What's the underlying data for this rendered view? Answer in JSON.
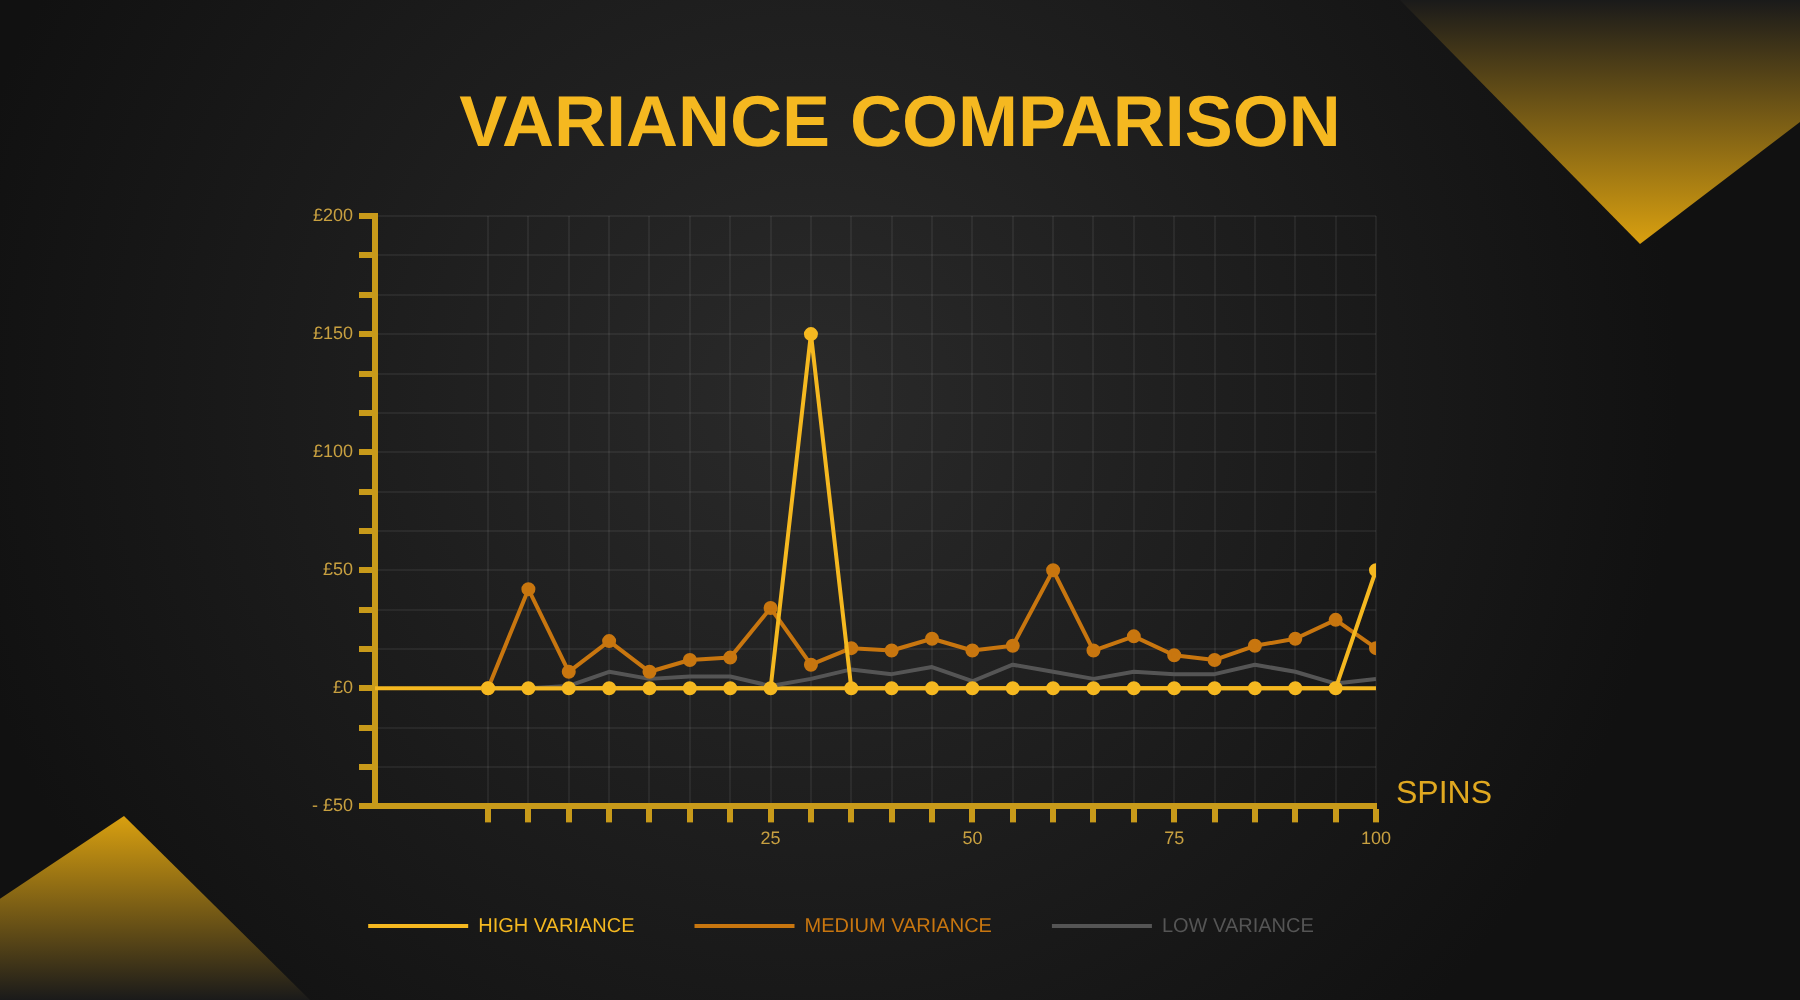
{
  "chart_data": {
    "type": "line",
    "title": "VARIANCE COMPARISON",
    "xlabel": "SPINS",
    "x": [
      -10,
      -5,
      0,
      5,
      10,
      15,
      20,
      25,
      30,
      35,
      40,
      45,
      50,
      55,
      60,
      65,
      70,
      75,
      80,
      85,
      90,
      95,
      100
    ],
    "series": [
      {
        "name": "HIGH VARIANCE",
        "color": "#f5b820",
        "marker": "circle",
        "values": [
          0,
          0,
          0,
          0,
          0,
          0,
          0,
          0,
          150,
          0,
          0,
          0,
          0,
          0,
          0,
          0,
          0,
          0,
          0,
          0,
          0,
          0,
          50
        ]
      },
      {
        "name": "MEDIUM VARIANCE",
        "color": "#c8760f",
        "marker": "circle",
        "values": [
          0,
          42,
          7,
          20,
          7,
          12,
          13,
          34,
          10,
          17,
          16,
          21,
          16,
          18,
          50,
          16,
          22,
          14,
          12,
          18,
          21,
          29,
          17
        ]
      },
      {
        "name": "LOW VARIANCE",
        "color": "#555555",
        "marker": "none",
        "values": [
          0,
          0,
          1,
          7,
          4,
          5,
          5,
          1,
          4,
          8,
          6,
          9,
          3,
          10,
          7,
          4,
          7,
          6,
          6,
          10,
          7,
          2,
          4
        ]
      }
    ],
    "xlim": [
      -24,
      100
    ],
    "xticks": [
      {
        "value": -10,
        "label": null
      },
      {
        "value": -5,
        "label": null
      },
      {
        "value": 0,
        "label": null
      },
      {
        "value": 5,
        "label": null
      },
      {
        "value": 10,
        "label": null
      },
      {
        "value": 15,
        "label": null
      },
      {
        "value": 20,
        "label": null
      },
      25,
      {
        "value": 30,
        "label": null
      },
      {
        "value": 35,
        "label": null
      },
      {
        "value": 40,
        "label": null
      },
      {
        "value": 45,
        "label": null
      },
      50,
      {
        "value": 55,
        "label": null
      },
      {
        "value": 60,
        "label": null
      },
      {
        "value": 65,
        "label": null
      },
      {
        "value": 70,
        "label": null
      },
      75,
      {
        "value": 80,
        "label": null
      },
      {
        "value": 85,
        "label": null
      },
      {
        "value": 90,
        "label": null
      },
      {
        "value": 95,
        "label": null
      },
      100
    ],
    "ylim": [
      -50,
      200
    ],
    "yticks": [
      {
        "value": -50,
        "label": "- £50"
      },
      {
        "value": -33.3,
        "label": null
      },
      {
        "value": -16.7,
        "label": null
      },
      {
        "value": 0,
        "label": "£0"
      },
      {
        "value": 16.7,
        "label": null
      },
      {
        "value": 33.3,
        "label": null
      },
      {
        "value": 50,
        "label": "£50"
      },
      {
        "value": 66.7,
        "label": null
      },
      {
        "value": 83.3,
        "label": null
      },
      {
        "value": 100,
        "label": "£100"
      },
      {
        "value": 116.7,
        "label": null
      },
      {
        "value": 133.3,
        "label": null
      },
      {
        "value": 150,
        "label": "£150"
      },
      {
        "value": 166.7,
        "label": null
      },
      {
        "value": 183.3,
        "label": null
      },
      {
        "value": 200,
        "label": "£200"
      }
    ],
    "ref_lines": [
      {
        "axis": "y",
        "value": 0,
        "color": "#f5b820"
      }
    ],
    "grid": true,
    "legend": "bottom",
    "line_style": "solid"
  }
}
